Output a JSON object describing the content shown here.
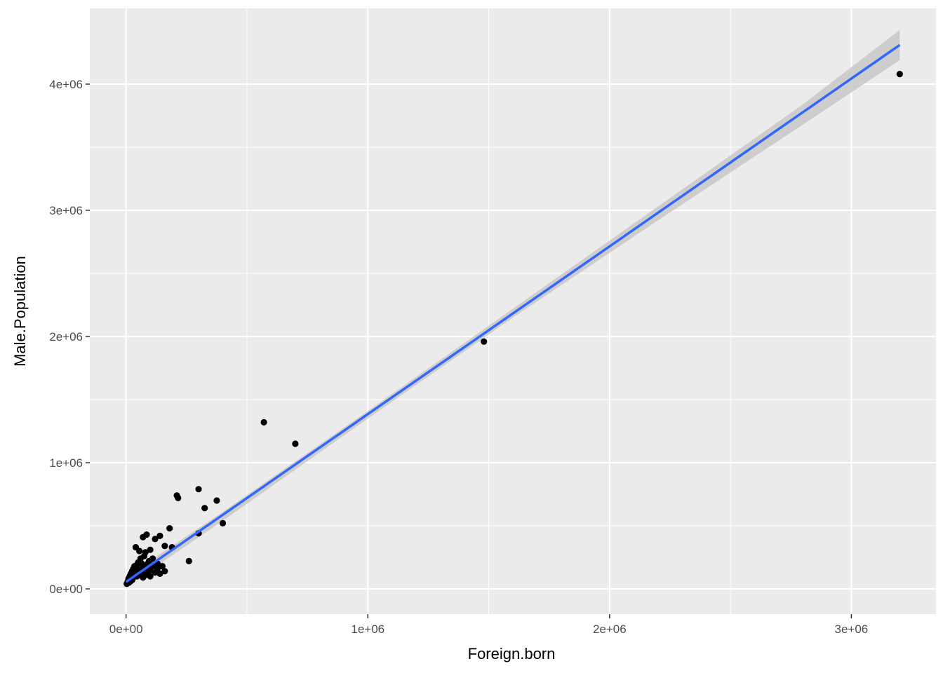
{
  "chart_data": {
    "type": "scatter",
    "xlabel": "Foreign.born",
    "ylabel": "Male.Population",
    "xlim": [
      -150000,
      3350000
    ],
    "ylim": [
      -200000,
      4600000
    ],
    "x_ticks": [
      0,
      1000000,
      2000000,
      3000000
    ],
    "x_tick_labels": [
      "0e+00",
      "1e+06",
      "2e+06",
      "3e+06"
    ],
    "y_ticks": [
      0,
      1000000,
      2000000,
      3000000,
      4000000
    ],
    "y_tick_labels": [
      "0e+00",
      "1e+06",
      "2e+06",
      "3e+06",
      "4e+06"
    ],
    "grid": true,
    "colors": {
      "panel": "#ebebeb",
      "grid": "#ffffff",
      "points": "#000000",
      "fit_line": "#3366ff",
      "confidence_band": "#c8c8c8"
    },
    "points": [
      [
        3200000,
        4080000
      ],
      [
        1480000,
        1960000
      ],
      [
        570000,
        1320000
      ],
      [
        700000,
        1150000
      ],
      [
        300000,
        790000
      ],
      [
        210000,
        740000
      ],
      [
        215000,
        720000
      ],
      [
        375000,
        700000
      ],
      [
        325000,
        640000
      ],
      [
        400000,
        520000
      ],
      [
        180000,
        480000
      ],
      [
        140000,
        420000
      ],
      [
        85000,
        430000
      ],
      [
        70000,
        410000
      ],
      [
        120000,
        395000
      ],
      [
        300000,
        440000
      ],
      [
        190000,
        330000
      ],
      [
        160000,
        340000
      ],
      [
        40000,
        330000
      ],
      [
        100000,
        310000
      ],
      [
        55000,
        300000
      ],
      [
        80000,
        290000
      ],
      [
        260000,
        220000
      ],
      [
        150000,
        180000
      ],
      [
        130000,
        200000
      ],
      [
        110000,
        240000
      ],
      [
        95000,
        220000
      ],
      [
        75000,
        260000
      ],
      [
        60000,
        240000
      ],
      [
        50000,
        210000
      ],
      [
        45000,
        190000
      ],
      [
        65000,
        200000
      ],
      [
        35000,
        180000
      ],
      [
        30000,
        160000
      ],
      [
        25000,
        140000
      ],
      [
        20000,
        120000
      ],
      [
        15000,
        100000
      ],
      [
        10000,
        80000
      ],
      [
        8000,
        60000
      ],
      [
        5000,
        50000
      ],
      [
        3000,
        40000
      ],
      [
        40000,
        140000
      ],
      [
        55000,
        150000
      ],
      [
        70000,
        170000
      ],
      [
        85000,
        160000
      ],
      [
        100000,
        150000
      ],
      [
        120000,
        130000
      ],
      [
        140000,
        120000
      ],
      [
        160000,
        140000
      ],
      [
        90000,
        120000
      ],
      [
        60000,
        110000
      ],
      [
        45000,
        100000
      ],
      [
        30000,
        90000
      ],
      [
        25000,
        70000
      ],
      [
        18000,
        60000
      ],
      [
        12000,
        50000
      ],
      [
        70000,
        90000
      ],
      [
        80000,
        110000
      ],
      [
        100000,
        100000
      ],
      [
        110000,
        180000
      ],
      [
        50000,
        130000
      ],
      [
        35000,
        120000
      ],
      [
        20000,
        90000
      ],
      [
        65000,
        140000
      ],
      [
        90000,
        200000
      ],
      [
        130000,
        160000
      ],
      [
        75000,
        180000
      ],
      [
        40000,
        170000
      ]
    ],
    "fit_line": [
      [
        0,
        55000
      ],
      [
        3200000,
        4310000
      ]
    ],
    "confidence_band": [
      [
        0,
        15000,
        95000
      ],
      [
        400000,
        540000,
        610000
      ],
      [
        1000000,
        1350000,
        1410000
      ],
      [
        1600000,
        2150000,
        2220000
      ],
      [
        2200000,
        2920000,
        3030000
      ],
      [
        2800000,
        3680000,
        3840000
      ],
      [
        3200000,
        4190000,
        4430000
      ]
    ]
  }
}
